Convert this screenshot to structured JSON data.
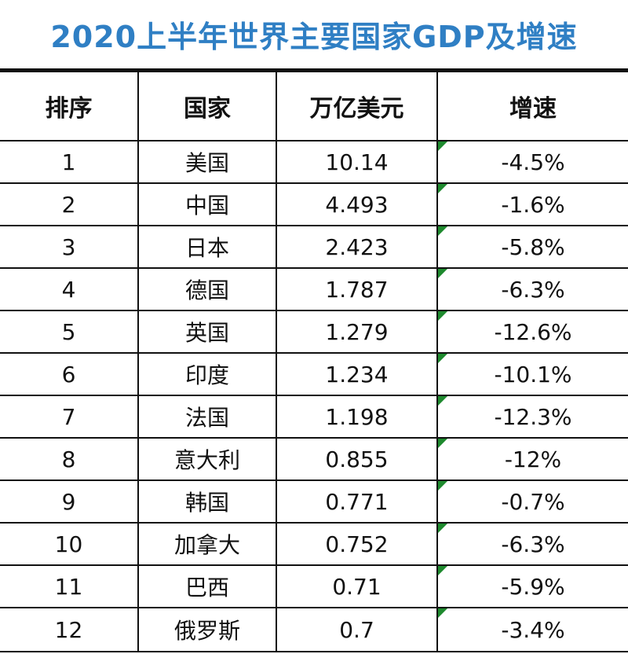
{
  "title": "2020上半年世界主要国家GDP及增速",
  "headers": [
    "排序",
    "国家",
    "万亿美元",
    "增速"
  ],
  "chart_data": {
    "type": "table",
    "title": "2020上半年世界主要国家GDP及增速",
    "columns": [
      "排序",
      "国家",
      "万亿美元",
      "增速"
    ],
    "rows": [
      [
        "1",
        "美国",
        "10.14",
        "-4.5%"
      ],
      [
        "2",
        "中国",
        "4.493",
        "-1.6%"
      ],
      [
        "3",
        "日本",
        "2.423",
        "-5.8%"
      ],
      [
        "4",
        "德国",
        "1.787",
        "-6.3%"
      ],
      [
        "5",
        "英国",
        "1.279",
        "-12.6%"
      ],
      [
        "6",
        "印度",
        "1.234",
        "-10.1%"
      ],
      [
        "7",
        "法国",
        "1.198",
        "-12.3%"
      ],
      [
        "8",
        "意大利",
        "0.855",
        "-12%"
      ],
      [
        "9",
        "韩国",
        "0.771",
        "-0.7%"
      ],
      [
        "10",
        "加拿大",
        "0.752",
        "-6.3%"
      ],
      [
        "11",
        "巴西",
        "0.71",
        "-5.9%"
      ],
      [
        "12",
        "俄罗斯",
        "0.7",
        "-3.4%"
      ]
    ]
  },
  "colors": {
    "title": "#2f7fc4",
    "border": "#111111",
    "comment_flag": "#1e8a2e"
  }
}
